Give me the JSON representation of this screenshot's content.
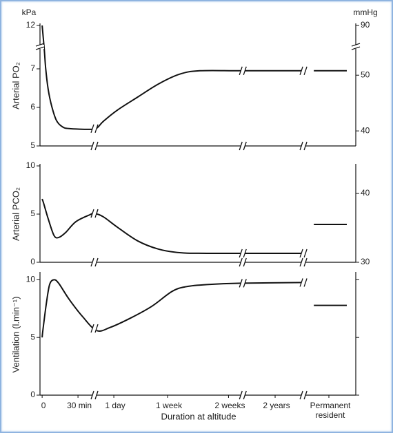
{
  "chart_data": [
    {
      "type": "line",
      "y_unit": "kPa",
      "y2_unit": "mmHg",
      "ylabel": "Arterial PO₂",
      "xlim": [
        -0.06,
        8.75
      ],
      "xbreaks": [
        1.46,
        5.6,
        7.29
      ],
      "ylim": [
        5,
        12
      ],
      "ybreak": [
        7.5,
        11.5
      ],
      "yticks": [
        5,
        6,
        7,
        12
      ],
      "y2lim": [
        37.3,
        90
      ],
      "y2break": [
        54.6,
        88
      ],
      "y2ticks": [
        40,
        50,
        90
      ],
      "x": [
        0,
        0.06,
        0.1,
        0.17,
        0.27,
        0.4,
        0.56,
        0.75,
        1.33,
        1.52,
        1.71,
        2.1,
        2.67,
        3.25,
        3.83,
        4.4,
        5.56,
        7.29,
        null,
        7.58,
        8.5
      ],
      "series": [
        {
          "color": "#111111",
          "values": [
            12,
            7.5,
            7.0,
            6.46,
            6.02,
            5.66,
            5.5,
            5.45,
            5.43,
            5.46,
            5.64,
            5.93,
            6.27,
            6.61,
            6.86,
            6.95,
            6.95,
            6.95,
            null,
            6.95,
            6.95
          ]
        }
      ]
    },
    {
      "type": "line",
      "ylabel": "Arterial PCO₂",
      "xlim": [
        -0.06,
        8.75
      ],
      "xbreaks": [
        1.46,
        5.6,
        7.29
      ],
      "ylim": [
        0,
        10
      ],
      "yticks": [
        0,
        5,
        10
      ],
      "y2lim": [
        30,
        44
      ],
      "y2ticks": [
        30,
        40
      ],
      "x": [
        0,
        0.04,
        0.17,
        0.33,
        0.46,
        0.65,
        0.94,
        1.33,
        1.46,
        1.71,
        2.1,
        2.67,
        3.25,
        3.83,
        4.6,
        7.29,
        null,
        7.58,
        8.5
      ],
      "series": [
        {
          "color": "#111111",
          "values": [
            6.57,
            6.14,
            4.5,
            2.79,
            2.57,
            3.07,
            4.21,
            4.93,
            5.07,
            4.71,
            3.64,
            2.21,
            1.36,
            1.0,
            0.93,
            0.93,
            null,
            3.93,
            3.93
          ]
        }
      ]
    },
    {
      "type": "line",
      "ylabel": "Ventilation (l.min⁻¹)",
      "xlabel": "Duration at altitude",
      "xlim": [
        -0.06,
        8.75
      ],
      "xbreaks": [
        1.46,
        5.6,
        7.29
      ],
      "xticks": [
        {
          "value": 0,
          "label": "0"
        },
        {
          "value": 1,
          "label": "30 min"
        },
        {
          "value": 2,
          "label": "1 day"
        },
        {
          "value": 3.5,
          "label": "1 week"
        },
        {
          "value": 5.2,
          "label": "2 weeks"
        },
        {
          "value": 6.5,
          "label": "2 years"
        },
        {
          "value": 8.0,
          "label": "Permanent resident"
        }
      ],
      "ylim": [
        0,
        10.5
      ],
      "yticks": [
        0,
        5,
        10
      ],
      "x": [
        0,
        0.02,
        0.12,
        0.21,
        0.33,
        0.46,
        0.75,
        1.13,
        1.52,
        1.9,
        2.48,
        3.06,
        3.63,
        4.02,
        4.6,
        5.56,
        7.29,
        null,
        7.58,
        8.5
      ],
      "series": [
        {
          "color": "#111111",
          "values": [
            5,
            5.6,
            8.0,
            9.6,
            10,
            9.7,
            8.32,
            6.8,
            5.6,
            5.87,
            6.7,
            7.7,
            9.0,
            9.4,
            9.58,
            9.7,
            9.76,
            null,
            7.78,
            7.78
          ]
        }
      ]
    }
  ]
}
